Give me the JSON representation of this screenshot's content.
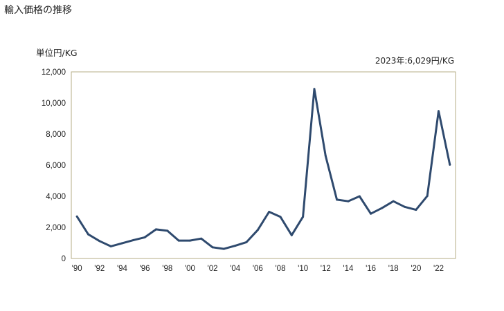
{
  "chart_data": {
    "type": "line",
    "title": "輸入価格の推移",
    "ylabel": "単位円/KG",
    "annotation": "2023年:6,029円/KG",
    "ylim": [
      0,
      12000
    ],
    "yticks": [
      0,
      2000,
      4000,
      6000,
      8000,
      10000,
      12000
    ],
    "ytick_labels": [
      "0",
      "2,000",
      "4,000",
      "6,000",
      "8,000",
      "10,000",
      "12,000"
    ],
    "xticks": [
      1990,
      1992,
      1994,
      1996,
      1998,
      2000,
      2002,
      2004,
      2006,
      2008,
      2010,
      2012,
      2014,
      2016,
      2018,
      2020,
      2022
    ],
    "xtick_labels": [
      "'90",
      "'92",
      "'94",
      "'96",
      "'98",
      "'00",
      "'02",
      "'04",
      "'06",
      "'08",
      "'10",
      "'12",
      "'14",
      "'16",
      "'18",
      "'20",
      "'22"
    ],
    "x": [
      1990,
      1991,
      1992,
      1993,
      1994,
      1995,
      1996,
      1997,
      1998,
      1999,
      2000,
      2001,
      2002,
      2003,
      2004,
      2005,
      2006,
      2007,
      2008,
      2009,
      2010,
      2011,
      2012,
      2013,
      2014,
      2015,
      2016,
      2017,
      2018,
      2019,
      2020,
      2021,
      2022,
      2023
    ],
    "series": [
      {
        "name": "輸入価格",
        "color": "#2f4a6e",
        "values": [
          2700,
          1550,
          1120,
          780,
          980,
          1180,
          1360,
          1870,
          1780,
          1150,
          1150,
          1280,
          720,
          620,
          820,
          1050,
          1830,
          3000,
          2680,
          1500,
          2680,
          10900,
          6600,
          3780,
          3680,
          4000,
          2880,
          3250,
          3680,
          3320,
          3130,
          4020,
          9480,
          6029
        ]
      }
    ]
  }
}
